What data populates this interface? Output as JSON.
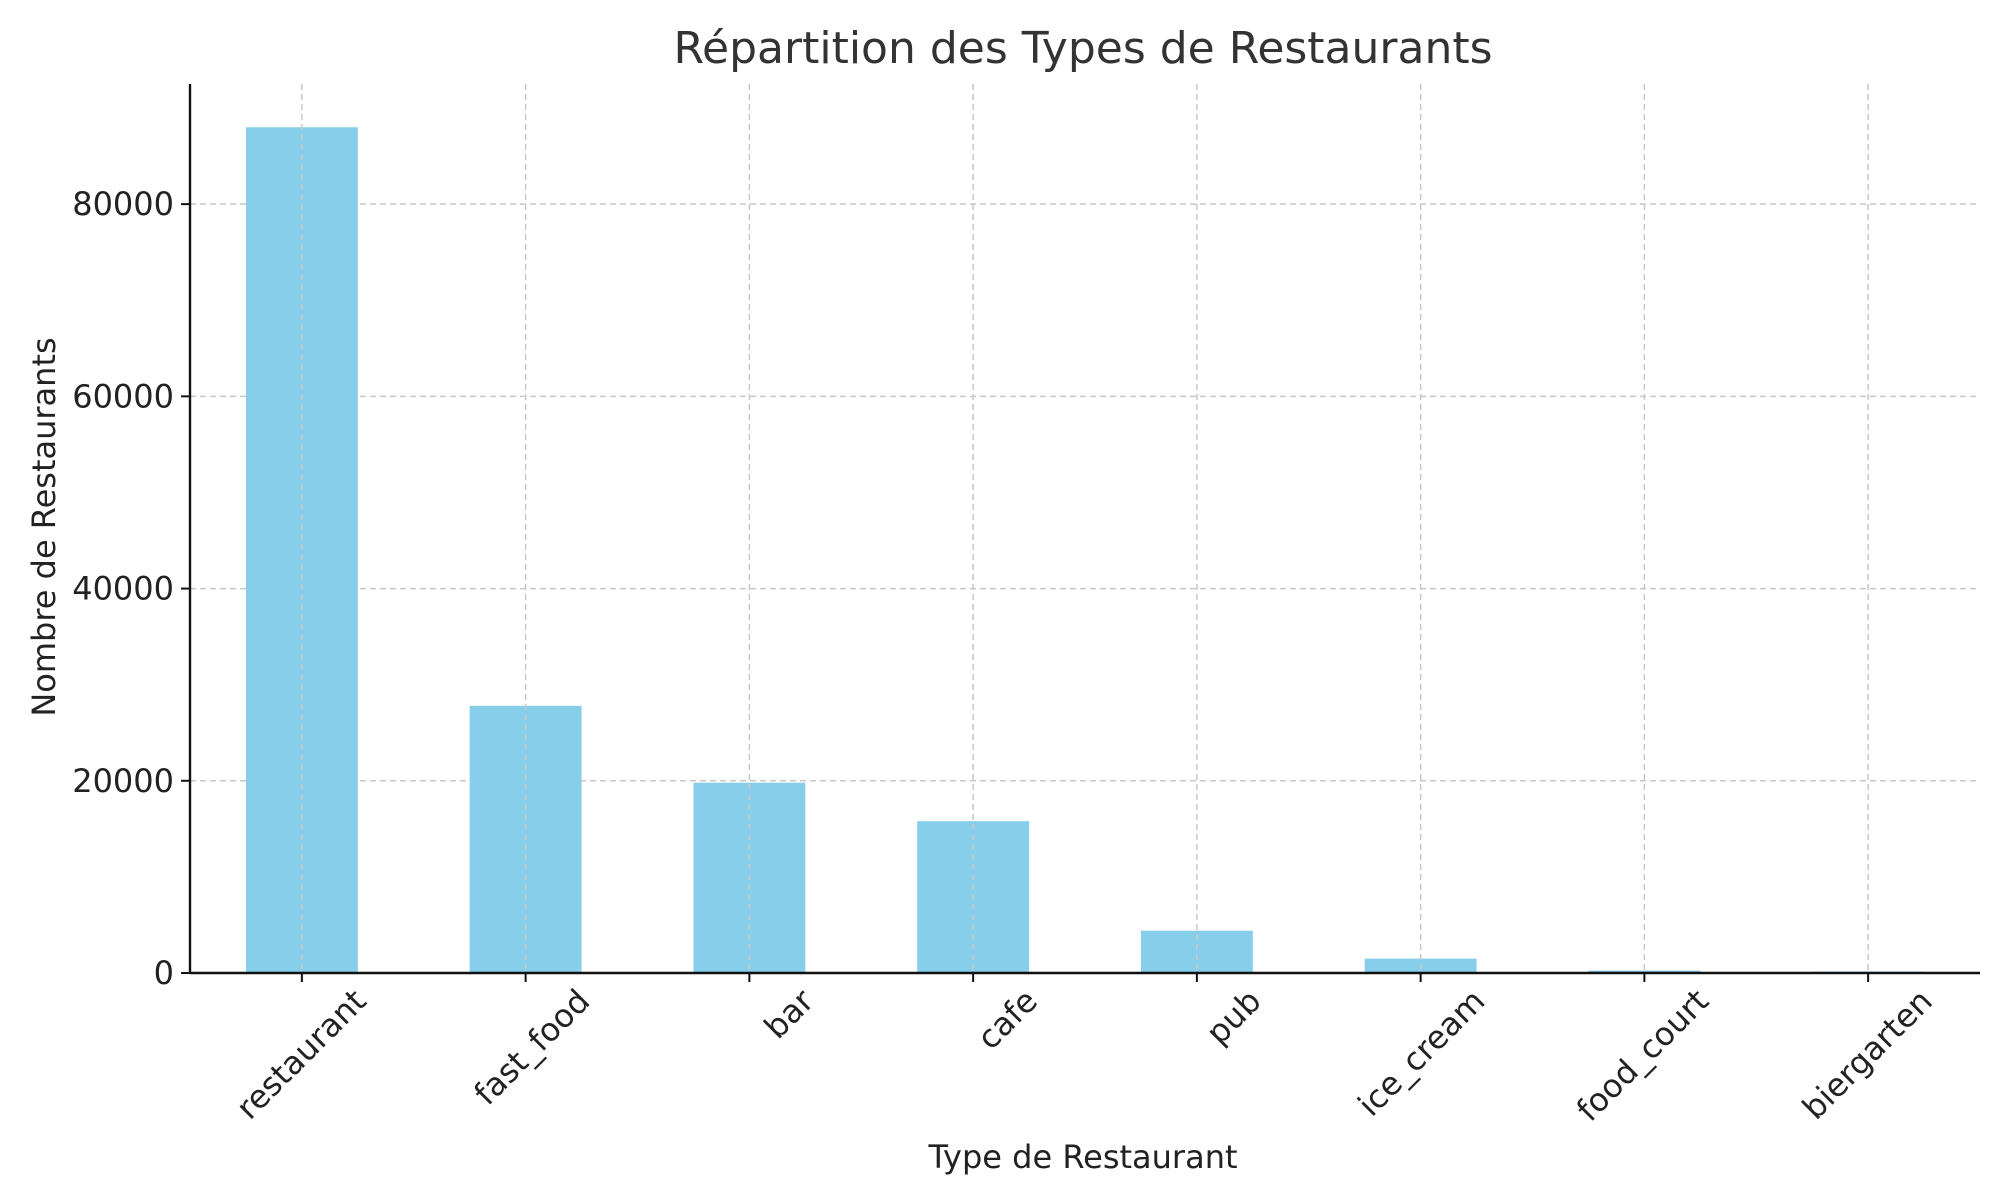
{
  "chart_data": {
    "type": "bar",
    "title": "Répartition des Types de Restaurants",
    "xlabel": "Type de Restaurant",
    "ylabel": "Nombre de Restaurants",
    "categories": [
      "restaurant",
      "fast_food",
      "bar",
      "cafe",
      "pub",
      "ice_cream",
      "food_court",
      "biergarten"
    ],
    "values": [
      88000,
      27800,
      19800,
      15800,
      4400,
      1500,
      250,
      150
    ],
    "ylim": [
      0,
      92500
    ],
    "yticks": [
      0,
      20000,
      40000,
      60000,
      80000
    ],
    "ytick_labels": [
      "0",
      "20000",
      "40000",
      "60000",
      "80000"
    ],
    "grid": true,
    "bar_color": "#87CEEB",
    "x_tick_rotation": "45 degrees"
  }
}
